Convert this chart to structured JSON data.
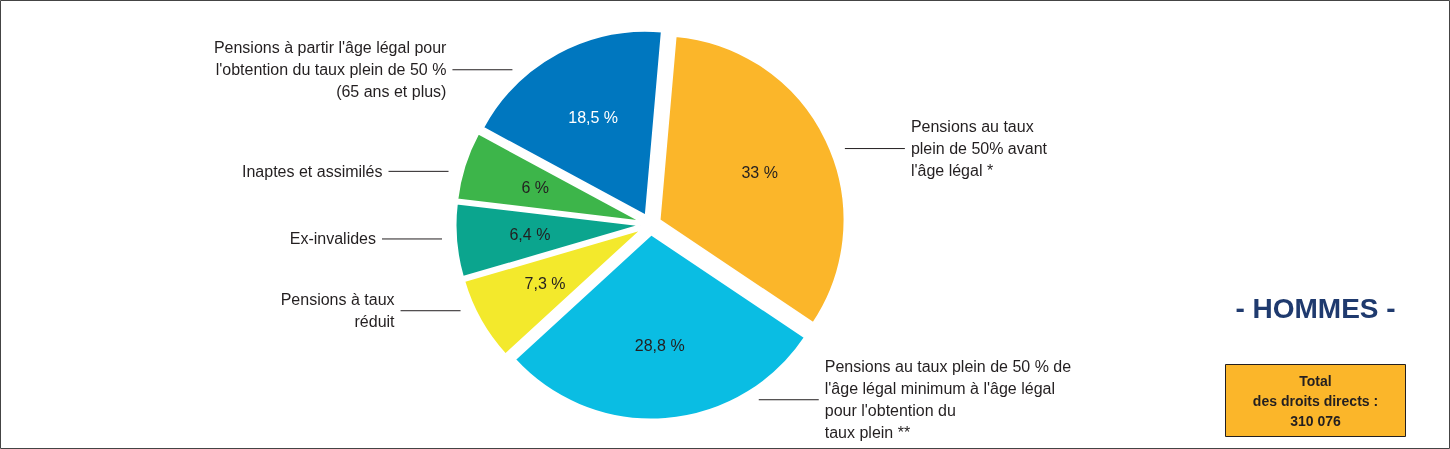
{
  "chart_data": {
    "type": "pie",
    "title": "- HOMMES -",
    "categories": [
      "Pensions au taux\nplein de 50% avant\nl'âge légal *",
      "Pensions au taux plein de 50 % de\nl'âge légal minimum à l'âge légal\npour l'obtention du\ntaux plein **",
      "Pensions à taux\nréduit",
      "Ex-invalides",
      "Inaptes et assimilés",
      "Pensions à partir l'âge légal pour\nl'obtention du taux plein de 50 %\n(65 ans et plus)"
    ],
    "values": [
      33,
      28.8,
      7.3,
      6.4,
      6,
      18.5
    ],
    "colors": [
      "#fbb62a",
      "#0abde3",
      "#f3e92c",
      "#0ba58e",
      "#3db54a",
      "#0077bf"
    ],
    "value_labels": [
      "33 %",
      "28,8 %",
      "7,3 %",
      "6,4 %",
      "6 %",
      "18,5 %"
    ],
    "annotations": [
      "Total\ndes droits directs :\n310 076"
    ]
  }
}
